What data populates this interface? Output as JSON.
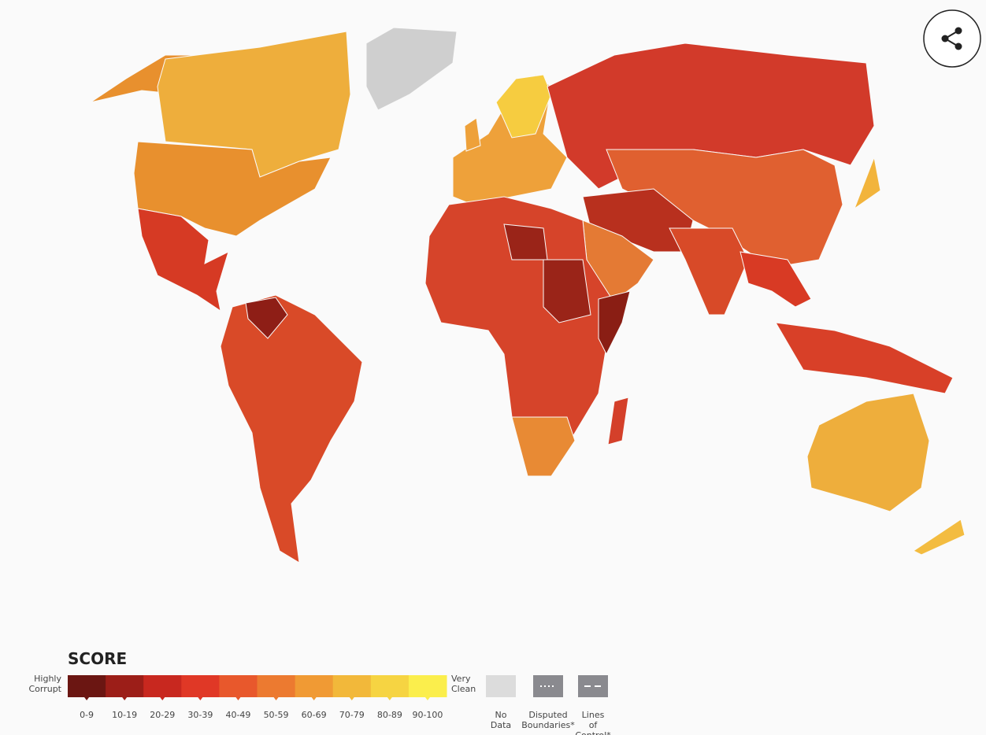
{
  "legend": {
    "title": "SCORE",
    "low_label": "Highly Corrupt",
    "high_label": "Very Clean",
    "bins": [
      {
        "label": "0-9",
        "color": "#6b1612"
      },
      {
        "label": "10-19",
        "color": "#9c1e18"
      },
      {
        "label": "20-29",
        "color": "#c8281f"
      },
      {
        "label": "30-39",
        "color": "#e03826"
      },
      {
        "label": "40-49",
        "color": "#e8582c"
      },
      {
        "label": "50-59",
        "color": "#ec7a30"
      },
      {
        "label": "60-69",
        "color": "#f09a34"
      },
      {
        "label": "70-79",
        "color": "#f2b83a"
      },
      {
        "label": "80-89",
        "color": "#f6d442"
      },
      {
        "label": "90-100",
        "color": "#fbee4c"
      }
    ],
    "extras": [
      {
        "label": "No Data",
        "color": "#dcdcdc"
      },
      {
        "label": "Disputed Boundaries*",
        "color": "#8a8a8f"
      },
      {
        "label": "Lines of Control*",
        "color": "#8a8a8f"
      }
    ]
  }
}
